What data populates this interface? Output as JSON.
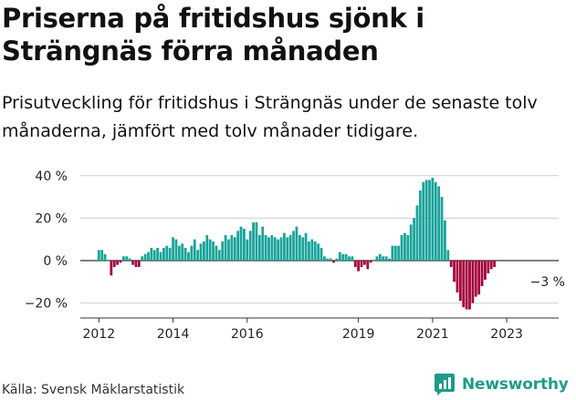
{
  "title": "Priserna på fritidshus sjönk i Strängnäs förra månaden",
  "subtitle": "Prisutveckling för fritidshus i Strängnäs under de senaste tolv månaderna, jämfört med tolv månader tidigare.",
  "source": "Källa: Svensk Mäklarstatistik",
  "brand": "Newsworthy",
  "colors": {
    "positive": "#1aa39a",
    "negative": "#a3003c",
    "brand": "#1f9a8a"
  },
  "chart_data": {
    "type": "bar",
    "ylim": [
      -25,
      42
    ],
    "y_ticks": [
      -20,
      0,
      20,
      40
    ],
    "y_tick_labels": [
      "−20 %",
      "0 %",
      "20 %",
      "40 %"
    ],
    "x_ticks": [
      2012,
      2014,
      2016,
      2019,
      2021,
      2023
    ],
    "x_range": [
      2011.5,
      2024.4
    ],
    "grid": "horizontal",
    "annotation": {
      "text": "−3 %",
      "x": 2023.75
    },
    "start_year": 2012,
    "values": [
      5,
      5,
      3,
      0,
      -7,
      -3,
      -2,
      -1,
      2,
      2,
      1,
      -2,
      -3,
      -3,
      2,
      3,
      4,
      6,
      5,
      6,
      4,
      6,
      7,
      6,
      11,
      10,
      7,
      8,
      6,
      4,
      7,
      10,
      5,
      8,
      9,
      12,
      10,
      9,
      7,
      5,
      9,
      12,
      10,
      12,
      11,
      14,
      16,
      15,
      10,
      14,
      18,
      18,
      12,
      16,
      12,
      11,
      12,
      11,
      10,
      11,
      13,
      11,
      12,
      14,
      16,
      12,
      11,
      13,
      9,
      10,
      9,
      8,
      6,
      2,
      1,
      1,
      -1,
      1,
      4,
      3,
      3,
      2,
      2,
      -3,
      -5,
      -3,
      -2,
      -4,
      -1,
      0,
      2,
      3,
      2,
      2,
      1,
      7,
      7,
      7,
      12,
      13,
      12,
      17,
      20,
      26,
      33,
      37,
      38,
      38,
      39,
      37,
      35,
      30,
      19,
      5,
      -3,
      -10,
      -15,
      -19,
      -22,
      -23,
      -23,
      -20,
      -17,
      -16,
      -12,
      -9,
      -6,
      -4,
      -3
    ]
  }
}
